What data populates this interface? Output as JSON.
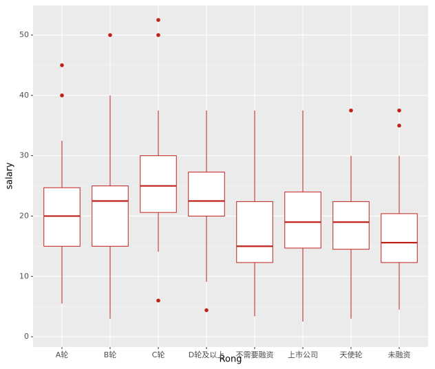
{
  "chart_data": {
    "type": "box",
    "x_label": "Rong",
    "y_label": "salary",
    "categories": [
      "A轮",
      "B轮",
      "C轮",
      "D轮及以上",
      "不需要融资",
      "上市公司",
      "天使轮",
      "未融资"
    ],
    "min": [
      5.5,
      3,
      14.1,
      9.1,
      3.4,
      2.5,
      3,
      4.5
    ],
    "q1": [
      15,
      15,
      20.6,
      20,
      12.3,
      14.7,
      14.5,
      12.3
    ],
    "median": [
      20,
      22.5,
      25,
      22.5,
      15,
      19,
      19,
      15.6
    ],
    "q3": [
      24.7,
      25,
      30,
      27.3,
      22.4,
      24,
      22.4,
      20.4
    ],
    "max": [
      32.5,
      40,
      37.5,
      37.5,
      37.5,
      37.5,
      30,
      30
    ],
    "outliers": [
      [
        45,
        40
      ],
      [
        50
      ],
      [
        52.5,
        50,
        6
      ],
      [
        4.4
      ],
      [],
      [],
      [
        37.5
      ],
      [
        37.5,
        35
      ]
    ],
    "color": "#c0201a",
    "ylim": [
      -1.7,
      54.9
    ],
    "yticks": [
      0,
      10,
      20,
      30,
      40,
      50
    ],
    "grid": true
  }
}
